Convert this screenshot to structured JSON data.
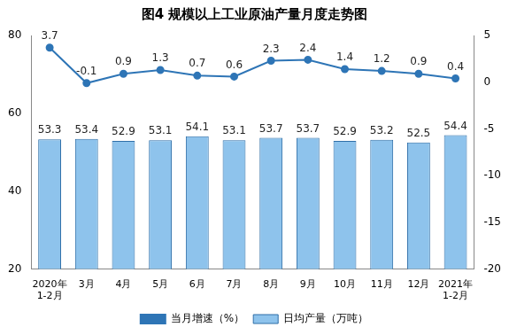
{
  "chart_data": {
    "type": "bar",
    "title": "图4 规模以上工业原油产量月度走势图",
    "categories": [
      [
        "2020年",
        "1-2月"
      ],
      "3月",
      "4月",
      "5月",
      "6月",
      "7月",
      "8月",
      "9月",
      "10月",
      "11月",
      "12月",
      [
        "2021年",
        "1-2月"
      ]
    ],
    "series": [
      {
        "name": "日均产量（万吨）",
        "type": "bar",
        "color": "#8ec3ec",
        "values": [
          53.3,
          53.4,
          52.9,
          53.1,
          54.1,
          53.1,
          53.7,
          53.7,
          52.9,
          53.2,
          52.5,
          54.4
        ]
      },
      {
        "name": "当月增速（%）",
        "type": "line",
        "axis": "y2",
        "color": "#2e75b6",
        "marker": "circle",
        "values": [
          3.7,
          -0.1,
          0.9,
          1.3,
          0.7,
          0.6,
          2.3,
          2.4,
          1.4,
          1.2,
          0.9,
          0.4
        ]
      }
    ],
    "ylim": [
      20,
      80
    ],
    "yticks": [
      20,
      40,
      60,
      80
    ],
    "y2lim": [
      -20,
      5
    ],
    "y2ticks": [
      -20,
      -15,
      -10,
      -5,
      0,
      5
    ],
    "grid": false,
    "legend": "bottom",
    "data_labels": true
  }
}
